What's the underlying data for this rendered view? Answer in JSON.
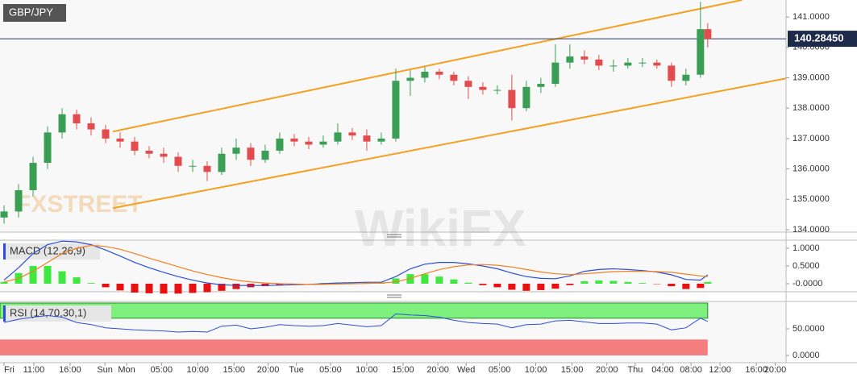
{
  "chart_data": {
    "type": "candlestick",
    "title": "GBP/JPY",
    "watermarks": [
      "FXSTREET",
      "WikiFX"
    ],
    "up_color": "#3a9e55",
    "down_color": "#e34c4c",
    "x": [
      0,
      2,
      4,
      6,
      8,
      10,
      12,
      14,
      16,
      18,
      20,
      22,
      24,
      26,
      28,
      30,
      32,
      34,
      36,
      38,
      40,
      42,
      44,
      46,
      48,
      50,
      52,
      54,
      56,
      58,
      60,
      62,
      64,
      66,
      68,
      70,
      72,
      74,
      76,
      78,
      80,
      82,
      84,
      86,
      88,
      90,
      92,
      94,
      96,
      97
    ],
    "open": [
      134.4,
      134.6,
      135.3,
      136.2,
      137.2,
      137.8,
      137.5,
      137.3,
      137.0,
      136.9,
      136.6,
      136.5,
      136.4,
      136.1,
      136.1,
      135.9,
      136.5,
      136.7,
      136.3,
      136.6,
      137.0,
      136.9,
      136.8,
      136.9,
      137.2,
      137.1,
      136.9,
      137.0,
      138.9,
      139.0,
      139.2,
      139.1,
      138.9,
      138.7,
      138.6,
      138.6,
      138.0,
      138.7,
      138.8,
      139.5,
      139.7,
      139.6,
      139.4,
      139.4,
      139.5,
      139.5,
      139.4,
      138.9,
      139.1,
      140.6
    ],
    "high": [
      134.8,
      135.5,
      136.4,
      137.4,
      138.0,
      137.95,
      137.7,
      137.45,
      137.2,
      137.05,
      136.75,
      136.7,
      136.55,
      136.3,
      136.25,
      136.7,
      137.0,
      136.85,
      136.8,
      137.2,
      137.15,
      137.05,
      137.1,
      137.5,
      137.35,
      137.3,
      137.2,
      139.3,
      139.25,
      139.35,
      139.3,
      139.2,
      139.05,
      138.85,
      138.75,
      139.1,
      138.9,
      139.0,
      140.1,
      140.1,
      139.9,
      139.75,
      139.6,
      139.65,
      139.65,
      139.6,
      139.5,
      139.3,
      141.5,
      140.8
    ],
    "low": [
      134.2,
      134.4,
      135.1,
      136.0,
      137.0,
      137.3,
      137.1,
      136.85,
      136.7,
      136.45,
      136.35,
      136.2,
      135.9,
      135.9,
      135.6,
      135.8,
      136.3,
      136.1,
      136.2,
      136.5,
      136.75,
      136.65,
      136.7,
      136.8,
      136.95,
      136.6,
      136.8,
      136.9,
      138.4,
      138.85,
      138.95,
      138.75,
      138.3,
      138.45,
      138.45,
      137.6,
      137.9,
      138.5,
      138.7,
      139.3,
      139.45,
      139.25,
      139.2,
      139.3,
      139.35,
      139.3,
      138.7,
      138.75,
      139.0,
      140.0
    ],
    "close": [
      134.6,
      135.3,
      136.2,
      137.2,
      137.8,
      137.5,
      137.3,
      137.0,
      136.9,
      136.6,
      136.5,
      136.4,
      136.1,
      136.1,
      135.9,
      136.5,
      136.7,
      136.3,
      136.6,
      137.0,
      136.9,
      136.8,
      136.9,
      137.2,
      137.1,
      136.9,
      137.0,
      138.9,
      139.0,
      139.2,
      139.1,
      138.9,
      138.7,
      138.6,
      138.6,
      138.0,
      138.7,
      138.8,
      139.5,
      139.7,
      139.6,
      139.4,
      139.4,
      139.5,
      139.5,
      139.4,
      138.9,
      139.1,
      140.6,
      140.28
    ],
    "xlim": [
      -0.56,
      107.8
    ],
    "xticks": [
      {
        "value": 0,
        "label": "Fri"
      },
      {
        "value": 4.1,
        "label": "11:00"
      },
      {
        "value": 9.1,
        "label": "16:00"
      },
      {
        "value": 13.9,
        "label": "Sun"
      },
      {
        "value": 16.9,
        "label": "Mon"
      },
      {
        "value": 21.7,
        "label": "05:00"
      },
      {
        "value": 26.7,
        "label": "10:00"
      },
      {
        "value": 31.7,
        "label": "15:00"
      },
      {
        "value": 36.4,
        "label": "20:00"
      },
      {
        "value": 40.3,
        "label": "Tue"
      },
      {
        "value": 45,
        "label": "05:00"
      },
      {
        "value": 50,
        "label": "10:00"
      },
      {
        "value": 55,
        "label": "15:00"
      },
      {
        "value": 59.8,
        "label": "20:00"
      },
      {
        "value": 63.7,
        "label": "Wed"
      },
      {
        "value": 68.3,
        "label": "05:00"
      },
      {
        "value": 73.3,
        "label": "10:00"
      },
      {
        "value": 78.3,
        "label": "15:00"
      },
      {
        "value": 83.1,
        "label": "20:00"
      },
      {
        "value": 87,
        "label": "Thu"
      },
      {
        "value": 90.8,
        "label": "04:00"
      },
      {
        "value": 94.7,
        "label": "08:00"
      },
      {
        "value": 98.7,
        "label": "12:00"
      },
      {
        "value": 103.7,
        "label": "16:00"
      },
      {
        "value": 106.3,
        "label": "20:00"
      }
    ],
    "ylim": [
      133.92,
      141.56
    ],
    "yticks": [
      {
        "value": 141,
        "label": "141.0000"
      },
      {
        "value": 140,
        "label": "140.0000"
      },
      {
        "value": 139,
        "label": "139.0000"
      },
      {
        "value": 138,
        "label": "138.0000"
      },
      {
        "value": 137,
        "label": "137.0000"
      },
      {
        "value": 136,
        "label": "136.0000"
      },
      {
        "value": 135,
        "label": "135.0000"
      },
      {
        "value": 134,
        "label": "134.0000"
      }
    ],
    "current_price": {
      "value": 140.2845,
      "label": "140.28450"
    },
    "channel_color": "#f5a020",
    "channels": [
      {
        "x": [
          15,
          101.7
        ],
        "values": [
          137.23,
          141.56
        ]
      },
      {
        "x": [
          15,
          107.8
        ],
        "values": [
          134.71,
          138.98
        ]
      }
    ],
    "macd": {
      "title": "MACD (12,26,9)",
      "ylim": [
        -0.227,
        1.227
      ],
      "yticks": [
        {
          "value": 1,
          "label": "1.0000"
        },
        {
          "value": 0.5,
          "label": "0.5000"
        },
        {
          "value": 0,
          "label": "-0.0000"
        }
      ],
      "series": [
        {
          "name": "MACD",
          "color": "#2b4fd8",
          "values": [
            0.1,
            0.45,
            0.85,
            1.1,
            1.2,
            1.18,
            1.1,
            0.95,
            0.78,
            0.6,
            0.45,
            0.32,
            0.2,
            0.1,
            0.02,
            -0.03,
            -0.05,
            -0.05,
            -0.05,
            -0.04,
            -0.03,
            -0.02,
            0,
            0.02,
            0.03,
            0.04,
            0.04,
            0.2,
            0.42,
            0.55,
            0.6,
            0.6,
            0.56,
            0.5,
            0.42,
            0.3,
            0.2,
            0.15,
            0.14,
            0.22,
            0.35,
            0.4,
            0.42,
            0.4,
            0.37,
            0.33,
            0.25,
            0.12,
            0.1,
            0.25
          ]
        },
        {
          "name": "Signal",
          "color": "#f08020",
          "values": [
            0.05,
            0.15,
            0.35,
            0.6,
            0.85,
            1.0,
            1.08,
            1.05,
            0.97,
            0.85,
            0.72,
            0.6,
            0.48,
            0.36,
            0.26,
            0.17,
            0.1,
            0.05,
            0.02,
            0,
            -0.01,
            -0.02,
            -0.02,
            -0.01,
            0,
            0.01,
            0.02,
            0.05,
            0.15,
            0.28,
            0.4,
            0.48,
            0.53,
            0.54,
            0.52,
            0.47,
            0.4,
            0.33,
            0.28,
            0.26,
            0.28,
            0.31,
            0.34,
            0.35,
            0.35,
            0.34,
            0.32,
            0.27,
            0.22,
            0.2
          ]
        }
      ],
      "histogram": [
        0.05,
        0.3,
        0.5,
        0.5,
        0.35,
        0.18,
        0.02,
        -0.1,
        -0.19,
        -0.25,
        -0.27,
        -0.28,
        -0.28,
        -0.26,
        -0.24,
        -0.2,
        -0.15,
        -0.1,
        -0.07,
        -0.04,
        -0.02,
        0,
        0.02,
        0.03,
        0.03,
        0.03,
        0.02,
        0.15,
        0.27,
        0.27,
        0.2,
        0.12,
        0.03,
        -0.04,
        -0.1,
        -0.17,
        -0.2,
        -0.18,
        -0.14,
        -0.04,
        0.07,
        0.09,
        0.08,
        0.05,
        0.02,
        -0.01,
        -0.07,
        -0.15,
        -0.12,
        0.05
      ]
    },
    "rsi": {
      "title": "RSI (14,70,30,1)",
      "ylim": [
        -13.6,
        101.5
      ],
      "yticks": [
        {
          "value": 50,
          "label": "50.0000"
        },
        {
          "value": 0,
          "label": "0.0000"
        }
      ],
      "overbought_level": 70,
      "oversold_level": 30,
      "color": "#2b4fd8",
      "values": [
        62,
        68,
        72,
        75,
        72,
        62,
        58,
        52,
        50,
        48,
        47,
        46,
        44,
        45,
        44,
        55,
        57,
        50,
        53,
        58,
        56,
        55,
        56,
        60,
        57,
        54,
        56,
        78,
        76,
        75,
        72,
        66,
        62,
        60,
        59,
        52,
        58,
        59,
        65,
        66,
        63,
        60,
        60,
        61,
        61,
        59,
        48,
        52,
        70,
        64
      ]
    }
  }
}
